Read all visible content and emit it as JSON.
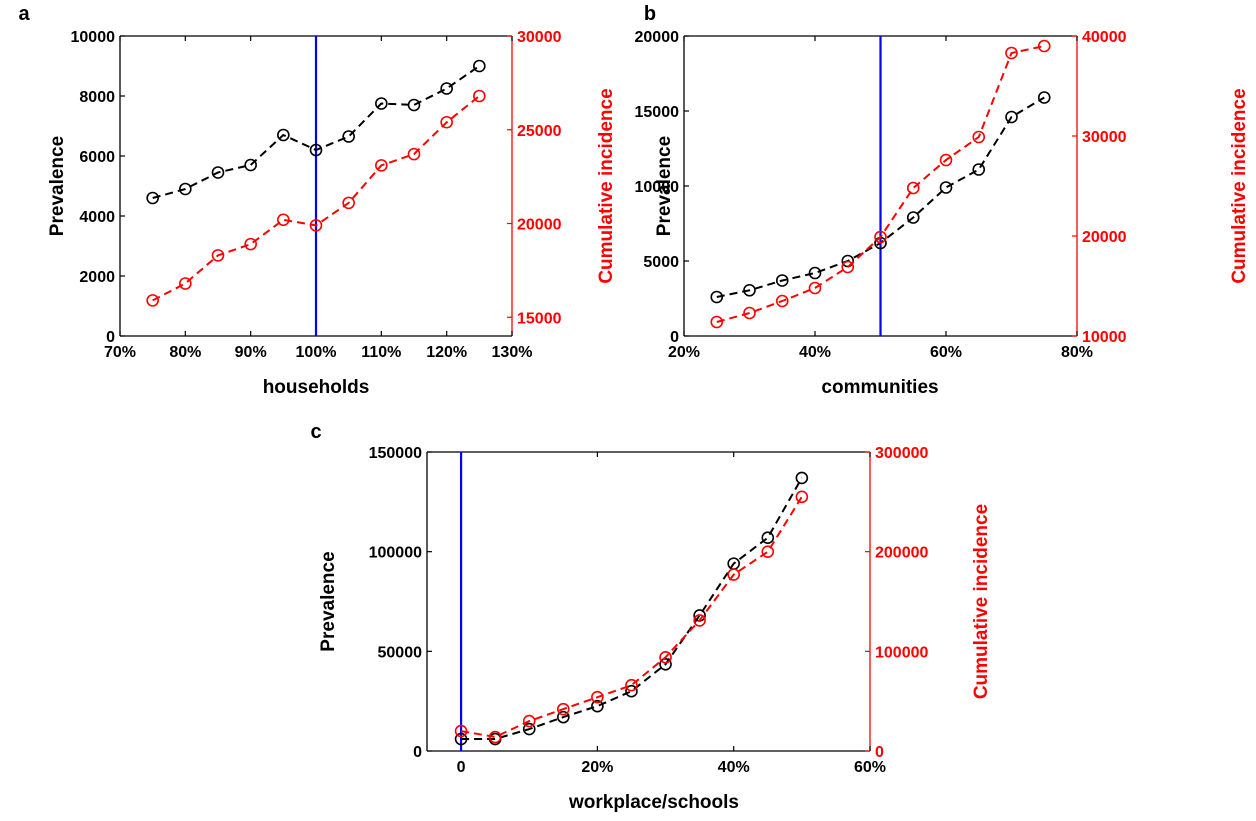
{
  "chart_data": [
    {
      "type": "line",
      "panel_label": "a",
      "xlabel": "households",
      "ylabel": "Prevalence",
      "ylabel_right": "Cumulative incidence",
      "xlim": [
        70,
        130
      ],
      "ylim": [
        0,
        10000
      ],
      "ylim_right": [
        14000,
        30000
      ],
      "x_ticks": [
        70,
        80,
        90,
        100,
        110,
        120,
        130
      ],
      "x_tick_labels": [
        "70%",
        "80%",
        "90%",
        "100%",
        "110%",
        "120%",
        "130%"
      ],
      "y_ticks": [
        0,
        2000,
        4000,
        6000,
        8000,
        10000
      ],
      "y_tick_labels": [
        "0",
        "2000",
        "4000",
        "6000",
        "8000",
        "10000"
      ],
      "y_ticks_right": [
        15000,
        20000,
        25000,
        30000
      ],
      "y_tick_labels_right": [
        "15000",
        "20000",
        "25000",
        "30000"
      ],
      "vline": 100,
      "grid": false,
      "x": [
        75,
        80,
        85,
        90,
        95,
        100,
        105,
        110,
        115,
        120,
        125
      ],
      "series": [
        {
          "axis": "left",
          "color": "#000000",
          "values": [
            4600,
            4900,
            5450,
            5700,
            6700,
            6200,
            6650,
            7750,
            7700,
            8250,
            9000
          ]
        },
        {
          "axis": "right",
          "color": "#ff0000",
          "values": [
            15900,
            16800,
            18300,
            18900,
            20200,
            19900,
            21100,
            23100,
            23700,
            25400,
            26800
          ]
        }
      ]
    },
    {
      "type": "line",
      "panel_label": "b",
      "xlabel": "communities",
      "ylabel": "Prevalence",
      "ylabel_right": "Cumulative incidence",
      "xlim": [
        20,
        80
      ],
      "ylim": [
        0,
        20000
      ],
      "ylim_right": [
        10000,
        40000
      ],
      "x_ticks": [
        20,
        40,
        60,
        80
      ],
      "x_tick_labels": [
        "20%",
        "40%",
        "60%",
        "80%"
      ],
      "y_ticks": [
        0,
        5000,
        10000,
        15000,
        20000
      ],
      "y_tick_labels": [
        "0",
        "5000",
        "10000",
        "15000",
        "20000"
      ],
      "y_ticks_right": [
        10000,
        20000,
        30000,
        40000
      ],
      "y_tick_labels_right": [
        "10000",
        "20000",
        "30000",
        "40000"
      ],
      "vline": 50,
      "grid": false,
      "x": [
        25,
        30,
        35,
        40,
        45,
        50,
        55,
        60,
        65,
        70,
        75
      ],
      "series": [
        {
          "axis": "left",
          "color": "#000000",
          "values": [
            2600,
            3050,
            3700,
            4200,
            5000,
            6200,
            7900,
            9900,
            11100,
            14600,
            15900
          ]
        },
        {
          "axis": "right",
          "color": "#ff0000",
          "values": [
            11400,
            12300,
            13500,
            14800,
            16900,
            19900,
            24800,
            27600,
            29900,
            38300,
            39000
          ]
        }
      ]
    },
    {
      "type": "line",
      "panel_label": "c",
      "xlabel": "workplace/schools",
      "ylabel": "Prevalence",
      "ylabel_right": "Cumulative incidence",
      "xlim": [
        -5,
        60
      ],
      "ylim": [
        0,
        150000
      ],
      "ylim_right": [
        0,
        300000
      ],
      "x_ticks": [
        0,
        20,
        40,
        60
      ],
      "x_tick_labels": [
        "0",
        "20%",
        "40%",
        "60%"
      ],
      "y_ticks": [
        0,
        50000,
        100000,
        150000
      ],
      "y_tick_labels": [
        "0",
        "50000",
        "100000",
        "150000"
      ],
      "y_ticks_right": [
        0,
        100000,
        200000,
        300000
      ],
      "y_tick_labels_right": [
        "0",
        "100000",
        "200000",
        "300000"
      ],
      "vline": 0,
      "grid": false,
      "x": [
        0,
        5,
        10,
        15,
        20,
        25,
        30,
        35,
        40,
        45,
        50
      ],
      "series": [
        {
          "axis": "left",
          "color": "#000000",
          "values": [
            6000,
            6000,
            11000,
            17000,
            22500,
            30000,
            43500,
            68000,
            94000,
            107000,
            137000
          ]
        },
        {
          "axis": "right",
          "color": "#ff0000",
          "values": [
            20000,
            14000,
            30000,
            42000,
            54000,
            66000,
            94000,
            131000,
            177000,
            200000,
            255000
          ]
        }
      ]
    }
  ],
  "colors": {
    "left_axis": "#000000",
    "right_axis": "#ff0000",
    "vline": "#0000ff"
  }
}
